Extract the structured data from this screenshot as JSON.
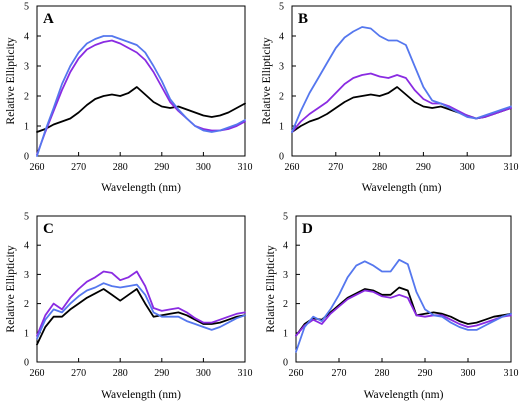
{
  "chart_data": [
    {
      "type": "line",
      "panel_label": "A",
      "xlabel": "Wavelength (nm)",
      "ylabel": "Relative Ellipticity",
      "xlim": [
        260,
        310
      ],
      "ylim": [
        0,
        5
      ],
      "xticks": [
        260,
        270,
        280,
        290,
        300,
        310
      ],
      "yticks": [
        0,
        1,
        2,
        3,
        4,
        5
      ],
      "grid": false,
      "legend": "none",
      "series": [
        {
          "color": "#000000",
          "x": [
            260,
            262,
            264,
            266,
            268,
            270,
            272,
            274,
            276,
            278,
            280,
            282,
            284,
            286,
            288,
            290,
            292,
            294,
            296,
            298,
            300,
            302,
            304,
            306,
            308,
            310
          ],
          "y": [
            0.8,
            0.9,
            1.05,
            1.15,
            1.25,
            1.45,
            1.7,
            1.9,
            2.0,
            2.05,
            2.0,
            2.1,
            2.3,
            2.05,
            1.8,
            1.65,
            1.6,
            1.65,
            1.55,
            1.45,
            1.35,
            1.3,
            1.35,
            1.45,
            1.6,
            1.75
          ]
        },
        {
          "color": "#8a2be2",
          "x": [
            260,
            262,
            264,
            266,
            268,
            270,
            272,
            274,
            276,
            278,
            280,
            282,
            284,
            286,
            288,
            290,
            292,
            294,
            296,
            298,
            300,
            302,
            304,
            306,
            308,
            310
          ],
          "y": [
            0.05,
            0.8,
            1.5,
            2.2,
            2.8,
            3.25,
            3.55,
            3.7,
            3.8,
            3.85,
            3.75,
            3.6,
            3.45,
            3.2,
            2.8,
            2.3,
            1.8,
            1.5,
            1.25,
            1.0,
            0.9,
            0.85,
            0.85,
            0.9,
            1.0,
            1.15
          ]
        },
        {
          "color": "#5577ee",
          "x": [
            260,
            262,
            264,
            266,
            268,
            270,
            272,
            274,
            276,
            278,
            280,
            282,
            284,
            286,
            288,
            290,
            292,
            294,
            296,
            298,
            300,
            302,
            304,
            306,
            308,
            310
          ],
          "y": [
            0.0,
            0.85,
            1.6,
            2.4,
            3.0,
            3.45,
            3.75,
            3.9,
            4.0,
            4.0,
            3.9,
            3.8,
            3.7,
            3.45,
            3.0,
            2.5,
            1.9,
            1.55,
            1.25,
            1.0,
            0.85,
            0.8,
            0.85,
            0.95,
            1.05,
            1.2
          ]
        }
      ]
    },
    {
      "type": "line",
      "panel_label": "B",
      "xlabel": "Wavelength (nm)",
      "ylabel": "Relative Ellipticity",
      "xlim": [
        260,
        310
      ],
      "ylim": [
        0,
        5
      ],
      "xticks": [
        260,
        270,
        280,
        290,
        300,
        310
      ],
      "yticks": [
        0,
        1,
        2,
        3,
        4,
        5
      ],
      "grid": false,
      "legend": "none",
      "series": [
        {
          "color": "#000000",
          "x": [
            260,
            262,
            264,
            266,
            268,
            270,
            272,
            274,
            276,
            278,
            280,
            282,
            284,
            286,
            288,
            290,
            292,
            294,
            296,
            298,
            300,
            302,
            304,
            306,
            308,
            310
          ],
          "y": [
            0.8,
            1.0,
            1.15,
            1.25,
            1.4,
            1.6,
            1.8,
            1.95,
            2.0,
            2.05,
            2.0,
            2.1,
            2.3,
            2.05,
            1.8,
            1.65,
            1.6,
            1.65,
            1.55,
            1.45,
            1.35,
            1.25,
            1.3,
            1.4,
            1.5,
            1.6
          ]
        },
        {
          "color": "#8a2be2",
          "x": [
            260,
            262,
            264,
            266,
            268,
            270,
            272,
            274,
            276,
            278,
            280,
            282,
            284,
            286,
            288,
            290,
            292,
            294,
            296,
            298,
            300,
            302,
            304,
            306,
            308,
            310
          ],
          "y": [
            0.8,
            1.15,
            1.4,
            1.6,
            1.8,
            2.1,
            2.4,
            2.6,
            2.7,
            2.75,
            2.65,
            2.6,
            2.7,
            2.6,
            2.2,
            1.9,
            1.75,
            1.75,
            1.65,
            1.5,
            1.35,
            1.25,
            1.3,
            1.4,
            1.5,
            1.6
          ]
        },
        {
          "color": "#5577ee",
          "x": [
            260,
            262,
            264,
            266,
            268,
            270,
            272,
            274,
            276,
            278,
            280,
            282,
            284,
            286,
            288,
            290,
            292,
            294,
            296,
            298,
            300,
            302,
            304,
            306,
            308,
            310
          ],
          "y": [
            0.8,
            1.5,
            2.1,
            2.6,
            3.1,
            3.6,
            3.95,
            4.15,
            4.3,
            4.25,
            4.0,
            3.85,
            3.85,
            3.7,
            3.0,
            2.3,
            1.85,
            1.75,
            1.6,
            1.45,
            1.3,
            1.25,
            1.35,
            1.45,
            1.55,
            1.65
          ]
        }
      ]
    },
    {
      "type": "line",
      "panel_label": "C",
      "xlabel": "Wavelength (nm)",
      "ylabel": "Relative Ellipticity",
      "xlim": [
        260,
        310
      ],
      "ylim": [
        0,
        5
      ],
      "xticks": [
        260,
        270,
        280,
        290,
        300,
        310
      ],
      "yticks": [
        0,
        1,
        2,
        3,
        4,
        5
      ],
      "grid": false,
      "legend": "none",
      "series": [
        {
          "color": "#000000",
          "x": [
            260,
            262,
            264,
            266,
            268,
            270,
            272,
            274,
            276,
            278,
            280,
            282,
            284,
            286,
            288,
            290,
            292,
            294,
            296,
            298,
            300,
            302,
            304,
            306,
            308,
            310
          ],
          "y": [
            0.6,
            1.2,
            1.55,
            1.55,
            1.8,
            2.0,
            2.2,
            2.35,
            2.5,
            2.3,
            2.1,
            2.3,
            2.5,
            2.0,
            1.55,
            1.6,
            1.65,
            1.7,
            1.6,
            1.45,
            1.3,
            1.3,
            1.35,
            1.45,
            1.55,
            1.6
          ]
        },
        {
          "color": "#8a2be2",
          "x": [
            260,
            262,
            264,
            266,
            268,
            270,
            272,
            274,
            276,
            278,
            280,
            282,
            284,
            286,
            288,
            290,
            292,
            294,
            296,
            298,
            300,
            302,
            304,
            306,
            308,
            310
          ],
          "y": [
            0.9,
            1.6,
            2.0,
            1.8,
            2.2,
            2.5,
            2.75,
            2.9,
            3.1,
            3.05,
            2.8,
            2.9,
            3.1,
            2.6,
            1.85,
            1.75,
            1.8,
            1.85,
            1.7,
            1.5,
            1.35,
            1.35,
            1.45,
            1.55,
            1.65,
            1.7
          ]
        },
        {
          "color": "#5577ee",
          "x": [
            260,
            262,
            264,
            266,
            268,
            270,
            272,
            274,
            276,
            278,
            280,
            282,
            284,
            286,
            288,
            290,
            292,
            294,
            296,
            298,
            300,
            302,
            304,
            306,
            308,
            310
          ],
          "y": [
            0.8,
            1.45,
            1.8,
            1.7,
            2.0,
            2.25,
            2.45,
            2.55,
            2.7,
            2.6,
            2.55,
            2.6,
            2.65,
            2.3,
            1.7,
            1.55,
            1.55,
            1.55,
            1.4,
            1.3,
            1.2,
            1.1,
            1.2,
            1.35,
            1.5,
            1.6
          ]
        }
      ]
    },
    {
      "type": "line",
      "panel_label": "D",
      "xlabel": "Wavelength (nm)",
      "ylabel": "Relative Ellipticity",
      "xlim": [
        260,
        310
      ],
      "ylim": [
        0,
        5
      ],
      "xticks": [
        260,
        270,
        280,
        290,
        300,
        310
      ],
      "yticks": [
        0,
        1,
        2,
        3,
        4,
        5
      ],
      "grid": false,
      "legend": "none",
      "series": [
        {
          "color": "#000000",
          "x": [
            260,
            262,
            264,
            266,
            268,
            270,
            272,
            274,
            276,
            278,
            280,
            282,
            284,
            286,
            288,
            290,
            292,
            294,
            296,
            298,
            300,
            302,
            304,
            306,
            308,
            310
          ],
          "y": [
            0.9,
            1.3,
            1.5,
            1.45,
            1.7,
            1.95,
            2.2,
            2.35,
            2.5,
            2.45,
            2.3,
            2.3,
            2.55,
            2.45,
            1.6,
            1.65,
            1.7,
            1.65,
            1.55,
            1.4,
            1.3,
            1.35,
            1.45,
            1.55,
            1.6,
            1.65
          ]
        },
        {
          "color": "#8a2be2",
          "x": [
            260,
            262,
            264,
            266,
            268,
            270,
            272,
            274,
            276,
            278,
            280,
            282,
            284,
            286,
            288,
            290,
            292,
            294,
            296,
            298,
            300,
            302,
            304,
            306,
            308,
            310
          ],
          "y": [
            0.9,
            1.25,
            1.45,
            1.3,
            1.65,
            1.9,
            2.15,
            2.3,
            2.45,
            2.4,
            2.25,
            2.2,
            2.3,
            2.2,
            1.6,
            1.55,
            1.6,
            1.6,
            1.45,
            1.3,
            1.2,
            1.25,
            1.35,
            1.45,
            1.55,
            1.6
          ]
        },
        {
          "color": "#5577ee",
          "x": [
            260,
            262,
            264,
            266,
            268,
            270,
            272,
            274,
            276,
            278,
            280,
            282,
            284,
            286,
            288,
            290,
            292,
            294,
            296,
            298,
            300,
            302,
            304,
            306,
            308,
            310
          ],
          "y": [
            0.35,
            1.2,
            1.55,
            1.4,
            1.8,
            2.3,
            2.9,
            3.3,
            3.45,
            3.3,
            3.1,
            3.1,
            3.5,
            3.35,
            2.4,
            1.8,
            1.6,
            1.55,
            1.35,
            1.2,
            1.1,
            1.1,
            1.25,
            1.4,
            1.55,
            1.65
          ]
        }
      ]
    }
  ]
}
